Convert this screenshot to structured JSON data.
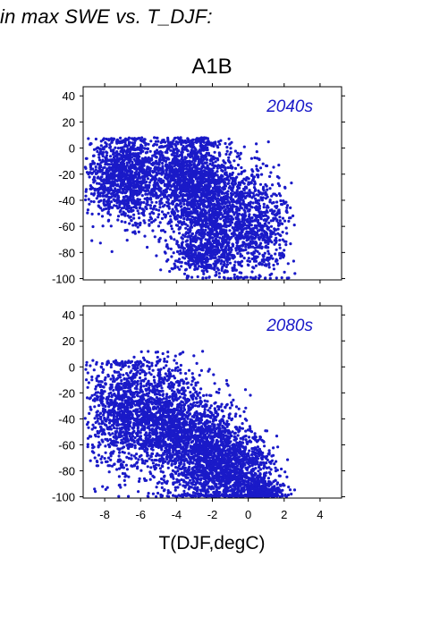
{
  "page_heading": "in max SWE vs. T_DJF:",
  "colors": {
    "points": "#1a1ac8",
    "axes": "#000000",
    "background": "#ffffff"
  },
  "chart_data": [
    {
      "type": "scatter",
      "title": "A1B",
      "panel_label": "2040s",
      "xlabel": "",
      "ylabel": "",
      "xlim": [
        -9.2,
        5.2
      ],
      "ylim": [
        -101,
        47
      ],
      "x_ticks": [
        -8,
        -6,
        -4,
        -2,
        0,
        2,
        4
      ],
      "x_tick_labels_shown": false,
      "y_ticks": [
        40,
        20,
        0,
        -20,
        -40,
        -60,
        -80,
        -100
      ],
      "y_tick_labels": [
        "40",
        "20",
        "0",
        "-20",
        "-40",
        "-60",
        "-80",
        "-100"
      ],
      "grid": false,
      "point_color": "#1a1ac8",
      "point_clusters": [
        {
          "x_mean": -6.8,
          "x_sd": 1.1,
          "y_mean": -22,
          "y_sd": 17,
          "count": 1300,
          "y_max": 8
        },
        {
          "x_mean": -3.4,
          "x_sd": 1.0,
          "y_mean": -22,
          "y_sd": 18,
          "count": 1100,
          "y_max": 8
        },
        {
          "x_mean": -1.7,
          "x_sd": 1.3,
          "y_mean": -50,
          "y_sd": 22,
          "count": 1300,
          "y_max": 6
        },
        {
          "x_mean": 0.7,
          "x_sd": 0.9,
          "y_mean": -62,
          "y_sd": 20,
          "count": 500,
          "y_max": 0
        },
        {
          "x_mean": -2.5,
          "x_sd": 0.9,
          "y_mean": -82,
          "y_sd": 8,
          "count": 350,
          "y_max": -60
        }
      ],
      "points_approx_total": 4550
    },
    {
      "type": "scatter",
      "title": "",
      "panel_label": "2080s",
      "xlabel": "T(DJF,degC)",
      "ylabel": "",
      "xlim": [
        -9.2,
        5.2
      ],
      "ylim": [
        -101,
        47
      ],
      "x_ticks": [
        -8,
        -6,
        -4,
        -2,
        0,
        2,
        4
      ],
      "x_tick_labels": [
        "-8",
        "-6",
        "-4",
        "-2",
        "0",
        "2",
        "4"
      ],
      "y_ticks": [
        40,
        20,
        0,
        -20,
        -40,
        -60,
        -80,
        -100
      ],
      "y_tick_labels": [
        "40",
        "20",
        "0",
        "-20",
        "-40",
        "-60",
        "-80",
        "-100"
      ],
      "grid": false,
      "point_color": "#1a1ac8",
      "point_clusters": [
        {
          "x_mean": -7.0,
          "x_sd": 1.0,
          "y_mean": -35,
          "y_sd": 22,
          "count": 1000,
          "y_max": 5
        },
        {
          "x_mean": -4.6,
          "x_sd": 1.0,
          "y_mean": -40,
          "y_sd": 22,
          "count": 1100,
          "y_max": 12
        },
        {
          "x_mean": -2.5,
          "x_sd": 1.1,
          "y_mean": -65,
          "y_sd": 20,
          "count": 1400,
          "y_max": 8
        },
        {
          "x_mean": -0.5,
          "x_sd": 1.1,
          "y_mean": -80,
          "y_sd": 14,
          "count": 900,
          "y_max": 0
        },
        {
          "x_mean": 0.8,
          "x_sd": 0.6,
          "y_mean": -96,
          "y_sd": 4,
          "count": 250,
          "y_max": -88
        }
      ],
      "points_approx_total": 4650
    }
  ]
}
